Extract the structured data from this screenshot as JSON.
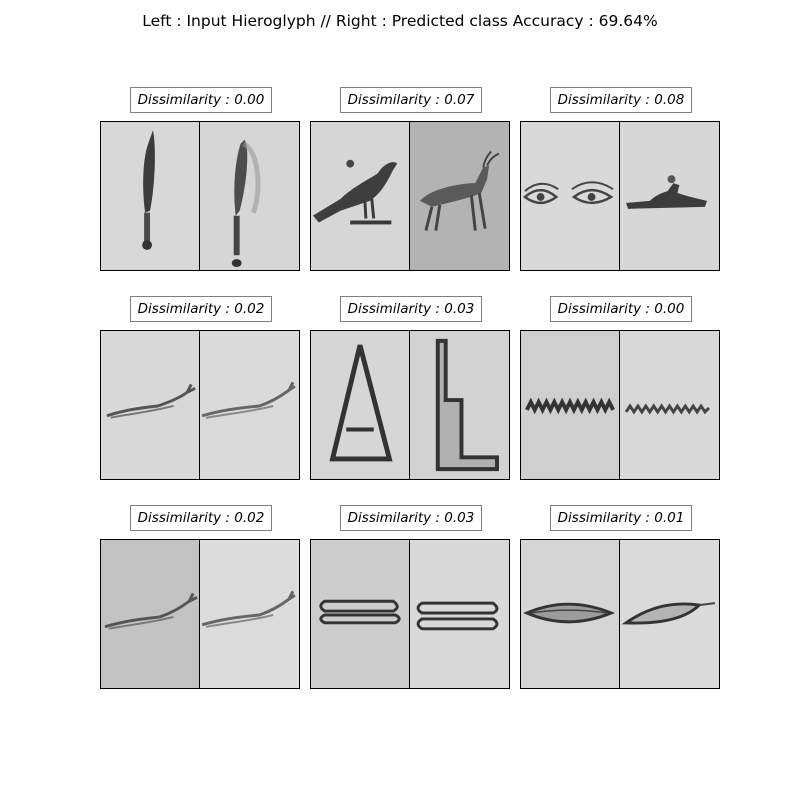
{
  "title": "Left : Input Hieroglyph // Right : Predicted class Accuracy : 69.64%",
  "cells": [
    {
      "dissimilarity": "Dissimilarity : 0.00",
      "left_glyph": "knife-glyph",
      "right_glyph": "knife-glyph",
      "left_bg": "#d8d8d8",
      "right_bg": "#d6d6d6"
    },
    {
      "dissimilarity": "Dissimilarity : 0.07",
      "left_glyph": "bird-glyph",
      "right_glyph": "quadruped-glyph",
      "left_bg": "#d6d6d6",
      "right_bg": "#b3b3b3"
    },
    {
      "dissimilarity": "Dissimilarity : 0.08",
      "left_glyph": "eyes-glyph",
      "right_glyph": "reclining-figure-glyph",
      "left_bg": "#d9d9d9",
      "right_bg": "#d7d7d7"
    },
    {
      "dissimilarity": "Dissimilarity : 0.02",
      "left_glyph": "horned-viper-glyph",
      "right_glyph": "horned-viper-glyph",
      "left_bg": "#d8d8d8",
      "right_bg": "#dadada"
    },
    {
      "dissimilarity": "Dissimilarity : 0.03",
      "left_glyph": "triangle-glyph",
      "right_glyph": "stepped-block-glyph",
      "left_bg": "#d6d6d6",
      "right_bg": "#d2d2d2"
    },
    {
      "dissimilarity": "Dissimilarity : 0.00",
      "left_glyph": "water-ripple-glyph",
      "right_glyph": "water-ripple-glyph",
      "left_bg": "#cfcfcf",
      "right_bg": "#d8d8d8"
    },
    {
      "dissimilarity": "Dissimilarity : 0.02",
      "left_glyph": "horned-viper-glyph",
      "right_glyph": "horned-viper-glyph",
      "left_bg": "#c3c3c3",
      "right_bg": "#dcdcdc"
    },
    {
      "dissimilarity": "Dissimilarity : 0.03",
      "left_glyph": "folded-cloth-glyph",
      "right_glyph": "folded-cloth-glyph",
      "left_bg": "#cdcdcd",
      "right_bg": "#d9d9d9"
    },
    {
      "dissimilarity": "Dissimilarity : 0.01",
      "left_glyph": "mouth-glyph",
      "right_glyph": "mouth-glyph",
      "left_bg": "#d5d5d5",
      "right_bg": "#dadada"
    }
  ]
}
